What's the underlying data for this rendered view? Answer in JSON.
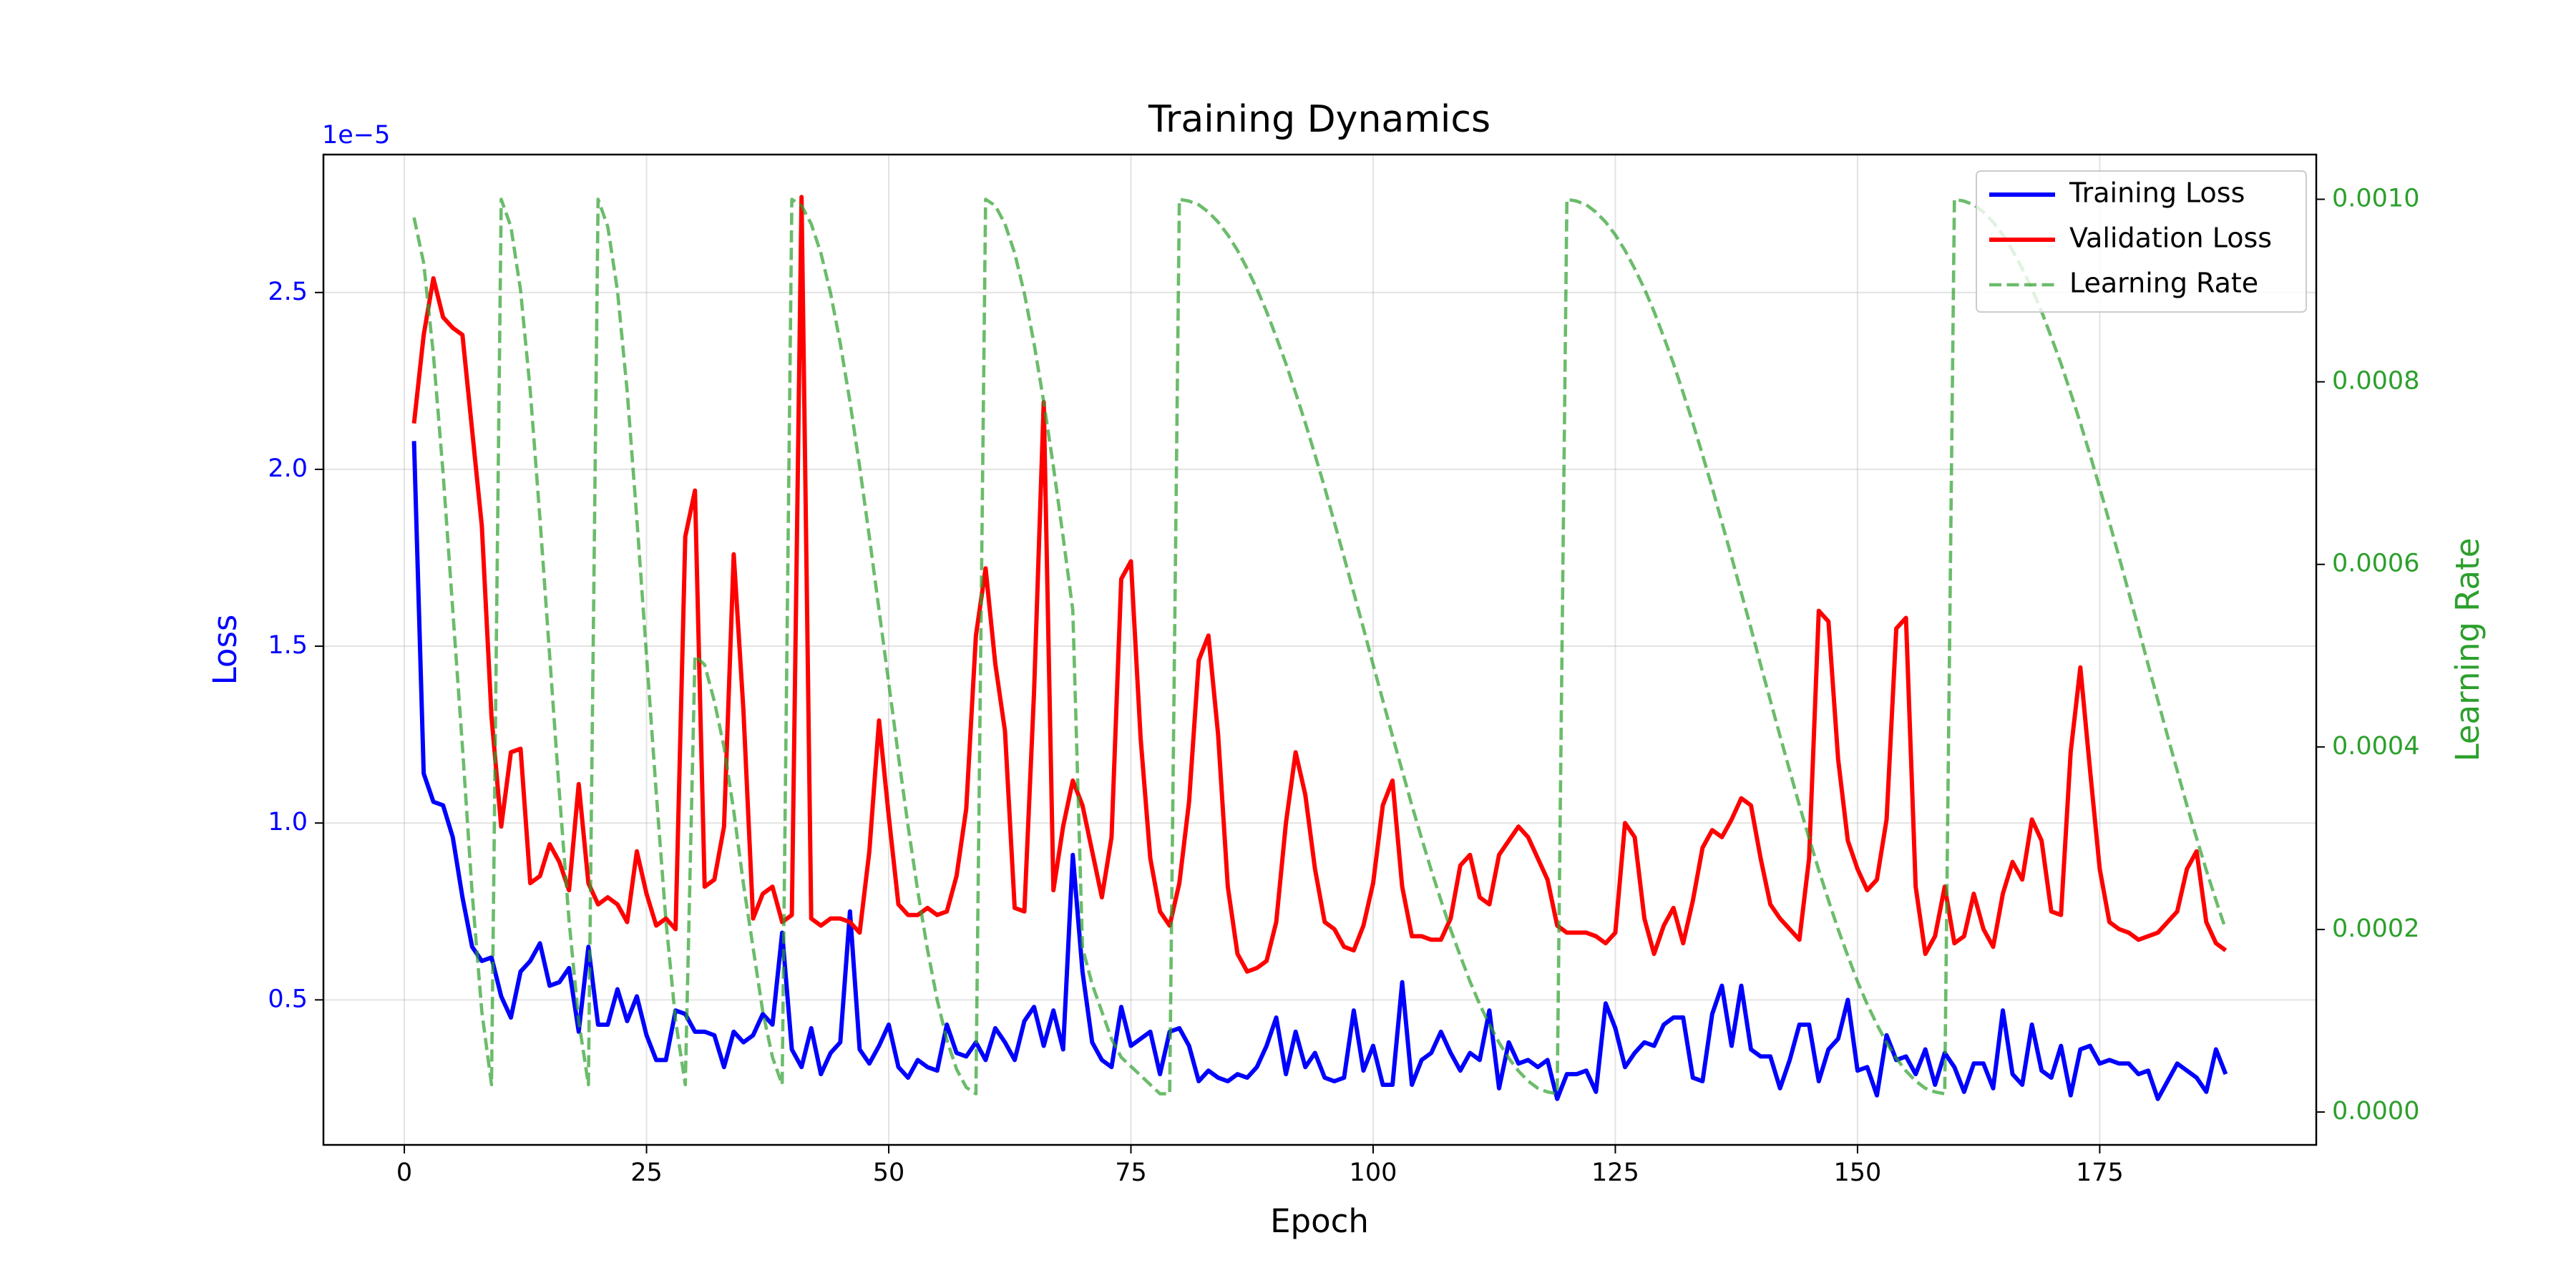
{
  "chart_data": {
    "type": "line",
    "title": "Training Dynamics",
    "xlabel": "Epoch",
    "ylabel": "Loss",
    "y2label": "Learning Rate",
    "y_offset_label": "1e−5",
    "grid": true,
    "legend": "upper right",
    "xlim": [
      -8.35,
      197.35
    ],
    "ylim": [
      0.09,
      2.89
    ],
    "y2lim": [
      -3.6e-05,
      0.001049
    ],
    "xticks": [
      0,
      25,
      50,
      75,
      100,
      125,
      150,
      175
    ],
    "yticks": [
      0.5,
      {
        "value": 1,
        "label": "1.0"
      },
      1.5,
      {
        "value": 2,
        "label": "2.0"
      },
      2.5
    ],
    "y2ticks": [
      {
        "value": 0,
        "label": "0.0000"
      },
      0.0002,
      0.0004,
      0.0006,
      0.0008,
      {
        "value": 0.001,
        "label": "0.0010"
      }
    ],
    "x": [
      1,
      2,
      3,
      4,
      5,
      6,
      7,
      8,
      9,
      10,
      11,
      12,
      13,
      14,
      15,
      16,
      17,
      18,
      19,
      20,
      21,
      22,
      23,
      24,
      25,
      26,
      27,
      28,
      29,
      30,
      31,
      32,
      33,
      34,
      35,
      36,
      37,
      38,
      39,
      40,
      41,
      42,
      43,
      44,
      45,
      46,
      47,
      48,
      49,
      50,
      51,
      52,
      53,
      54,
      55,
      56,
      57,
      58,
      59,
      60,
      61,
      62,
      63,
      64,
      65,
      66,
      67,
      68,
      69,
      70,
      71,
      72,
      73,
      74,
      75,
      76,
      77,
      78,
      79,
      80,
      81,
      82,
      83,
      84,
      85,
      86,
      87,
      88,
      89,
      90,
      91,
      92,
      93,
      94,
      95,
      96,
      97,
      98,
      99,
      100,
      101,
      102,
      103,
      104,
      105,
      106,
      107,
      108,
      109,
      110,
      111,
      112,
      113,
      114,
      115,
      116,
      117,
      118,
      119,
      120,
      121,
      122,
      123,
      124,
      125,
      126,
      127,
      128,
      129,
      130,
      131,
      132,
      133,
      134,
      135,
      136,
      137,
      138,
      139,
      140,
      141,
      142,
      143,
      144,
      145,
      146,
      147,
      148,
      149,
      150,
      151,
      152,
      153,
      154,
      155,
      156,
      157,
      158,
      159,
      160,
      161,
      162,
      163,
      164,
      165,
      166,
      167,
      168,
      169,
      170,
      171,
      172,
      173,
      174,
      175,
      176,
      177,
      178,
      179,
      180,
      181,
      182,
      183,
      184,
      185,
      186,
      187,
      188
    ],
    "series": [
      {
        "name": "Training Loss",
        "color": "#0000ff",
        "line_style": "solid",
        "axis": "y",
        "values": [
          2.08,
          1.14,
          1.06,
          1.05,
          0.96,
          0.79,
          0.65,
          0.61,
          0.62,
          0.51,
          0.45,
          0.58,
          0.61,
          0.66,
          0.54,
          0.55,
          0.59,
          0.41,
          0.65,
          0.43,
          0.43,
          0.53,
          0.44,
          0.51,
          0.4,
          0.33,
          0.33,
          0.47,
          0.46,
          0.41,
          0.41,
          0.4,
          0.31,
          0.41,
          0.38,
          0.4,
          0.46,
          0.43,
          0.69,
          0.36,
          0.31,
          0.42,
          0.29,
          0.35,
          0.38,
          0.75,
          0.36,
          0.32,
          0.37,
          0.43,
          0.31,
          0.28,
          0.33,
          0.31,
          0.3,
          0.43,
          0.35,
          0.34,
          0.38,
          0.33,
          0.42,
          0.38,
          0.33,
          0.44,
          0.48,
          0.37,
          0.47,
          0.36,
          0.91,
          0.58,
          0.38,
          0.33,
          0.31,
          0.48,
          0.37,
          0.39,
          0.41,
          0.29,
          0.41,
          0.42,
          0.37,
          0.27,
          0.3,
          0.28,
          0.27,
          0.29,
          0.28,
          0.31,
          0.37,
          0.45,
          0.29,
          0.41,
          0.31,
          0.35,
          0.28,
          0.27,
          0.28,
          0.47,
          0.3,
          0.37,
          0.26,
          0.26,
          0.55,
          0.26,
          0.33,
          0.35,
          0.41,
          0.35,
          0.3,
          0.35,
          0.33,
          0.47,
          0.25,
          0.38,
          0.32,
          0.33,
          0.31,
          0.33,
          0.22,
          0.29,
          0.29,
          0.3,
          0.24,
          0.49,
          0.42,
          0.31,
          0.35,
          0.38,
          0.37,
          0.43,
          0.45,
          0.45,
          0.28,
          0.27,
          0.46,
          0.54,
          0.37,
          0.54,
          0.36,
          0.34,
          0.34,
          0.25,
          0.33,
          0.43,
          0.43,
          0.27,
          0.36,
          0.39,
          0.5,
          0.3,
          0.31,
          0.23,
          0.4,
          0.33,
          0.34,
          0.29,
          0.36,
          0.26,
          0.35,
          0.31,
          0.24,
          0.32,
          0.32,
          0.25,
          0.47,
          0.29,
          0.26,
          0.43,
          0.3,
          0.28,
          0.37,
          0.23,
          0.36,
          0.37,
          0.32,
          0.33,
          0.32,
          0.32,
          0.29,
          0.3,
          0.22,
          0.27,
          0.32,
          0.3,
          0.28,
          0.24,
          0.36,
          0.29
        ]
      },
      {
        "name": "Validation Loss",
        "color": "#ff0000",
        "line_style": "solid",
        "axis": "y",
        "values": [
          2.13,
          2.38,
          2.54,
          2.43,
          2.4,
          2.38,
          2.11,
          1.84,
          1.3,
          0.99,
          1.2,
          1.21,
          0.83,
          0.85,
          0.94,
          0.89,
          0.81,
          1.11,
          0.83,
          0.77,
          0.79,
          0.77,
          0.72,
          0.92,
          0.8,
          0.71,
          0.73,
          0.7,
          1.81,
          1.94,
          0.82,
          0.84,
          0.99,
          1.76,
          1.32,
          0.73,
          0.8,
          0.82,
          0.72,
          0.74,
          2.77,
          0.73,
          0.71,
          0.73,
          0.73,
          0.72,
          0.69,
          0.92,
          1.29,
          1.02,
          0.77,
          0.74,
          0.74,
          0.76,
          0.74,
          0.75,
          0.85,
          1.04,
          1.53,
          1.72,
          1.45,
          1.26,
          0.76,
          0.75,
          1.37,
          2.19,
          0.81,
          0.99,
          1.12,
          1.05,
          0.92,
          0.79,
          0.96,
          1.69,
          1.74,
          1.24,
          0.9,
          0.75,
          0.71,
          0.83,
          1.06,
          1.46,
          1.53,
          1.25,
          0.82,
          0.63,
          0.58,
          0.59,
          0.61,
          0.72,
          1.0,
          1.2,
          1.08,
          0.87,
          0.72,
          0.7,
          0.65,
          0.64,
          0.71,
          0.83,
          1.05,
          1.12,
          0.82,
          0.68,
          0.68,
          0.67,
          0.67,
          0.73,
          0.88,
          0.91,
          0.79,
          0.77,
          0.91,
          0.95,
          0.99,
          0.96,
          0.9,
          0.84,
          0.71,
          0.69,
          0.69,
          0.69,
          0.68,
          0.66,
          0.69,
          1.0,
          0.96,
          0.73,
          0.63,
          0.71,
          0.76,
          0.66,
          0.78,
          0.93,
          0.98,
          0.96,
          1.01,
          1.07,
          1.05,
          0.9,
          0.77,
          0.73,
          0.7,
          0.67,
          0.9,
          1.6,
          1.57,
          1.18,
          0.95,
          0.87,
          0.81,
          0.84,
          1.01,
          1.55,
          1.58,
          0.82,
          0.63,
          0.68,
          0.82,
          0.66,
          0.68,
          0.8,
          0.7,
          0.65,
          0.8,
          0.89,
          0.84,
          1.01,
          0.95,
          0.75,
          0.74,
          1.2,
          1.44,
          1.15,
          0.87,
          0.72,
          0.7,
          0.69,
          0.67,
          0.68,
          0.69,
          0.72,
          0.75,
          0.87,
          0.92,
          0.72,
          0.66,
          0.64
        ]
      },
      {
        "name": "Learning Rate",
        "color": "#2ca02c",
        "line_style": "dashed",
        "axis": "y2",
        "values": [
          0.00098,
          0.00093,
          0.00083,
          0.0007,
          0.00055,
          0.0004,
          0.00024,
          0.00011,
          3e-05,
          0.001,
          0.00097,
          0.0009,
          0.00079,
          0.00065,
          0.0005,
          0.00035,
          0.00021,
          0.0001,
          3e-05,
          0.001,
          0.00097,
          0.0009,
          0.00079,
          0.00065,
          0.0005,
          0.00035,
          0.00021,
          0.0001,
          3e-05,
          0.0005,
          0.00049,
          0.00045,
          0.0004,
          0.00033,
          0.00025,
          0.00018,
          0.00011,
          6e-05,
          3e-05,
          0.001,
          0.000993,
          0.000973,
          0.000941,
          0.000897,
          0.000842,
          0.000778,
          0.000707,
          0.00063,
          0.00055,
          0.00047,
          0.00039,
          0.000313,
          0.000242,
          0.000178,
          0.000123,
          7.9e-05,
          4.7e-05,
          2.7e-05,
          2e-05,
          0.001,
          0.000993,
          0.000973,
          0.000941,
          0.000897,
          0.000842,
          0.000778,
          0.000707,
          0.00063,
          0.00055,
          0.00018,
          0.00014,
          0.00011,
          8e-05,
          6e-05,
          5e-05,
          4e-05,
          3e-05,
          2e-05,
          2e-05,
          0.001,
          0.000998,
          0.000994,
          0.000986,
          0.000975,
          0.000961,
          0.000944,
          0.000924,
          0.000902,
          0.000877,
          0.000849,
          0.00082,
          0.000788,
          0.000755,
          0.00072,
          0.000684,
          0.000646,
          0.000608,
          0.000569,
          0.00053,
          0.00049,
          0.000451,
          0.000412,
          0.000374,
          0.000336,
          0.0003,
          0.000265,
          0.000232,
          0.0002,
          0.000171,
          0.000143,
          0.000118,
          9.6e-05,
          7.6e-05,
          5.9e-05,
          4.5e-05,
          3.4e-05,
          2.6e-05,
          2.2e-05,
          2e-05,
          0.001,
          0.000998,
          0.000994,
          0.000986,
          0.000975,
          0.000961,
          0.000944,
          0.000924,
          0.000902,
          0.000877,
          0.000849,
          0.00082,
          0.000788,
          0.000755,
          0.00072,
          0.000684,
          0.000646,
          0.000608,
          0.000569,
          0.00053,
          0.00049,
          0.000451,
          0.000412,
          0.000374,
          0.000336,
          0.0003,
          0.000265,
          0.000232,
          0.0002,
          0.000171,
          0.000143,
          0.000118,
          9.6e-05,
          7.6e-05,
          5.9e-05,
          4.5e-05,
          3.4e-05,
          2.6e-05,
          2.2e-05,
          2e-05,
          0.001,
          0.000998,
          0.000994,
          0.000986,
          0.000975,
          0.000961,
          0.000944,
          0.000924,
          0.000902,
          0.000877,
          0.000849,
          0.00082,
          0.000788,
          0.000755,
          0.00072,
          0.000684,
          0.000646,
          0.000608,
          0.000569,
          0.00053,
          0.00049,
          0.000451,
          0.000412,
          0.000374,
          0.000336,
          0.0003,
          0.000265,
          0.000232,
          0.0002
        ]
      }
    ]
  }
}
